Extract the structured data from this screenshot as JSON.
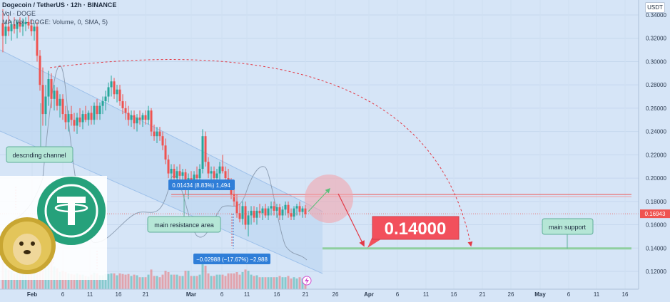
{
  "header": {
    "symbol_line": "Dogecoin / TetherUS · 12h · BINANCE",
    "vol_line": "Vol · DOGE",
    "ma_line": "MA (Vol · DOGE: Volume, 0, SMA, 5)"
  },
  "currency_label": "USDT",
  "colors": {
    "background": "#d6e5f7",
    "bull_candle": "#26a69a",
    "bear_candle": "#ef5350",
    "forecast_arrow": "#e23a46",
    "target_box": "#f2505c",
    "last_price_badge": "#ef5350",
    "measure_badge": "#2f7ed8",
    "label_box": "#b5e6d6",
    "support_line": "#8fcf9f",
    "resistance_line": "#ef5350"
  },
  "chart_data": {
    "type": "candlestick",
    "title": "Dogecoin / TetherUS · 12h · BINANCE",
    "y_unit": "USDT",
    "ylim": [
      0.11,
      0.35
    ],
    "y_ticks": [
      "0.34000",
      "0.32000",
      "0.30000",
      "0.28000",
      "0.26000",
      "0.24000",
      "0.22000",
      "0.20000",
      "0.18000",
      "0.16000",
      "0.14000",
      "0.12000"
    ],
    "y_tick_values": [
      0.34,
      0.32,
      0.3,
      0.28,
      0.26,
      0.24,
      0.22,
      0.2,
      0.18,
      0.16,
      0.14,
      0.12
    ],
    "x_ticks": [
      "Feb",
      "6",
      "11",
      "16",
      "21",
      "Mar",
      "6",
      "11",
      "16",
      "21",
      "26",
      "Apr",
      "6",
      "11",
      "16",
      "21",
      "26",
      "May",
      "6",
      "11",
      "16"
    ],
    "x_tick_bold": [
      "Feb",
      "Mar",
      "Apr",
      "May"
    ],
    "last_price": 0.16943,
    "last_price_label": "0.16943",
    "resistance_level": 0.186,
    "support_level": 0.14,
    "target_value": "0.14000",
    "candles": [
      {
        "x": 4,
        "o": 0.333,
        "h": 0.345,
        "l": 0.308,
        "c": 0.322
      },
      {
        "x": 8,
        "o": 0.322,
        "h": 0.335,
        "l": 0.315,
        "c": 0.33
      },
      {
        "x": 12,
        "o": 0.33,
        "h": 0.34,
        "l": 0.322,
        "c": 0.326
      },
      {
        "x": 16,
        "o": 0.326,
        "h": 0.335,
        "l": 0.318,
        "c": 0.332
      },
      {
        "x": 20,
        "o": 0.332,
        "h": 0.338,
        "l": 0.324,
        "c": 0.328
      },
      {
        "x": 24,
        "o": 0.328,
        "h": 0.336,
        "l": 0.32,
        "c": 0.334
      },
      {
        "x": 28,
        "o": 0.334,
        "h": 0.338,
        "l": 0.325,
        "c": 0.33
      },
      {
        "x": 32,
        "o": 0.33,
        "h": 0.337,
        "l": 0.322,
        "c": 0.332
      },
      {
        "x": 36,
        "o": 0.332,
        "h": 0.338,
        "l": 0.326,
        "c": 0.334
      },
      {
        "x": 40,
        "o": 0.334,
        "h": 0.34,
        "l": 0.328,
        "c": 0.331
      },
      {
        "x": 44,
        "o": 0.331,
        "h": 0.336,
        "l": 0.322,
        "c": 0.326
      },
      {
        "x": 48,
        "o": 0.326,
        "h": 0.333,
        "l": 0.318,
        "c": 0.33
      },
      {
        "x": 52,
        "o": 0.33,
        "h": 0.334,
        "l": 0.3,
        "c": 0.305
      },
      {
        "x": 56,
        "o": 0.305,
        "h": 0.31,
        "l": 0.275,
        "c": 0.28
      },
      {
        "x": 60,
        "o": 0.28,
        "h": 0.295,
        "l": 0.245,
        "c": 0.255
      },
      {
        "x": 64,
        "o": 0.255,
        "h": 0.28,
        "l": 0.245,
        "c": 0.27
      },
      {
        "x": 68,
        "o": 0.27,
        "h": 0.292,
        "l": 0.262,
        "c": 0.285
      },
      {
        "x": 72,
        "o": 0.285,
        "h": 0.29,
        "l": 0.26,
        "c": 0.268
      },
      {
        "x": 76,
        "o": 0.268,
        "h": 0.28,
        "l": 0.258,
        "c": 0.275
      },
      {
        "x": 80,
        "o": 0.275,
        "h": 0.278,
        "l": 0.258,
        "c": 0.262
      },
      {
        "x": 84,
        "o": 0.262,
        "h": 0.272,
        "l": 0.252,
        "c": 0.268
      },
      {
        "x": 88,
        "o": 0.268,
        "h": 0.272,
        "l": 0.25,
        "c": 0.255
      },
      {
        "x": 92,
        "o": 0.255,
        "h": 0.262,
        "l": 0.242,
        "c": 0.248
      },
      {
        "x": 96,
        "o": 0.248,
        "h": 0.258,
        "l": 0.24,
        "c": 0.255
      },
      {
        "x": 100,
        "o": 0.255,
        "h": 0.262,
        "l": 0.245,
        "c": 0.25
      },
      {
        "x": 104,
        "o": 0.25,
        "h": 0.256,
        "l": 0.24,
        "c": 0.245
      },
      {
        "x": 108,
        "o": 0.245,
        "h": 0.256,
        "l": 0.238,
        "c": 0.252
      },
      {
        "x": 112,
        "o": 0.252,
        "h": 0.26,
        "l": 0.244,
        "c": 0.248
      },
      {
        "x": 116,
        "o": 0.248,
        "h": 0.258,
        "l": 0.242,
        "c": 0.255
      },
      {
        "x": 120,
        "o": 0.255,
        "h": 0.262,
        "l": 0.248,
        "c": 0.25
      },
      {
        "x": 124,
        "o": 0.25,
        "h": 0.258,
        "l": 0.245,
        "c": 0.256
      },
      {
        "x": 128,
        "o": 0.256,
        "h": 0.262,
        "l": 0.246,
        "c": 0.25
      },
      {
        "x": 132,
        "o": 0.25,
        "h": 0.265,
        "l": 0.246,
        "c": 0.262
      },
      {
        "x": 136,
        "o": 0.262,
        "h": 0.268,
        "l": 0.25,
        "c": 0.255
      },
      {
        "x": 140,
        "o": 0.255,
        "h": 0.265,
        "l": 0.25,
        "c": 0.262
      },
      {
        "x": 144,
        "o": 0.262,
        "h": 0.27,
        "l": 0.255,
        "c": 0.266
      },
      {
        "x": 148,
        "o": 0.266,
        "h": 0.275,
        "l": 0.258,
        "c": 0.27
      },
      {
        "x": 152,
        "o": 0.27,
        "h": 0.282,
        "l": 0.265,
        "c": 0.278
      },
      {
        "x": 156,
        "o": 0.278,
        "h": 0.288,
        "l": 0.27,
        "c": 0.283
      },
      {
        "x": 160,
        "o": 0.283,
        "h": 0.286,
        "l": 0.268,
        "c": 0.272
      },
      {
        "x": 164,
        "o": 0.272,
        "h": 0.28,
        "l": 0.265,
        "c": 0.276
      },
      {
        "x": 168,
        "o": 0.276,
        "h": 0.28,
        "l": 0.262,
        "c": 0.266
      },
      {
        "x": 172,
        "o": 0.266,
        "h": 0.272,
        "l": 0.255,
        "c": 0.26
      },
      {
        "x": 176,
        "o": 0.26,
        "h": 0.266,
        "l": 0.25,
        "c": 0.256
      },
      {
        "x": 180,
        "o": 0.256,
        "h": 0.262,
        "l": 0.245,
        "c": 0.25
      },
      {
        "x": 184,
        "o": 0.25,
        "h": 0.258,
        "l": 0.244,
        "c": 0.254
      },
      {
        "x": 188,
        "o": 0.254,
        "h": 0.258,
        "l": 0.242,
        "c": 0.247
      },
      {
        "x": 192,
        "o": 0.247,
        "h": 0.255,
        "l": 0.24,
        "c": 0.252
      },
      {
        "x": 196,
        "o": 0.252,
        "h": 0.258,
        "l": 0.246,
        "c": 0.25
      },
      {
        "x": 200,
        "o": 0.25,
        "h": 0.256,
        "l": 0.244,
        "c": 0.254
      },
      {
        "x": 204,
        "o": 0.254,
        "h": 0.258,
        "l": 0.246,
        "c": 0.25
      },
      {
        "x": 208,
        "o": 0.25,
        "h": 0.262,
        "l": 0.246,
        "c": 0.258
      },
      {
        "x": 212,
        "o": 0.258,
        "h": 0.26,
        "l": 0.236,
        "c": 0.24
      },
      {
        "x": 216,
        "o": 0.24,
        "h": 0.246,
        "l": 0.232,
        "c": 0.236
      },
      {
        "x": 220,
        "o": 0.236,
        "h": 0.244,
        "l": 0.23,
        "c": 0.24
      },
      {
        "x": 224,
        "o": 0.24,
        "h": 0.244,
        "l": 0.232,
        "c": 0.236
      },
      {
        "x": 228,
        "o": 0.236,
        "h": 0.24,
        "l": 0.224,
        "c": 0.228
      },
      {
        "x": 232,
        "o": 0.228,
        "h": 0.234,
        "l": 0.212,
        "c": 0.216
      },
      {
        "x": 236,
        "o": 0.216,
        "h": 0.22,
        "l": 0.2,
        "c": 0.204
      },
      {
        "x": 240,
        "o": 0.204,
        "h": 0.212,
        "l": 0.196,
        "c": 0.208
      },
      {
        "x": 244,
        "o": 0.208,
        "h": 0.212,
        "l": 0.196,
        "c": 0.2
      },
      {
        "x": 248,
        "o": 0.2,
        "h": 0.21,
        "l": 0.194,
        "c": 0.206
      },
      {
        "x": 252,
        "o": 0.206,
        "h": 0.212,
        "l": 0.198,
        "c": 0.202
      },
      {
        "x": 256,
        "o": 0.202,
        "h": 0.208,
        "l": 0.194,
        "c": 0.205
      },
      {
        "x": 260,
        "o": 0.205,
        "h": 0.208,
        "l": 0.186,
        "c": 0.19
      },
      {
        "x": 264,
        "o": 0.19,
        "h": 0.204,
        "l": 0.182,
        "c": 0.2
      },
      {
        "x": 268,
        "o": 0.2,
        "h": 0.206,
        "l": 0.192,
        "c": 0.197
      },
      {
        "x": 272,
        "o": 0.197,
        "h": 0.206,
        "l": 0.192,
        "c": 0.203
      },
      {
        "x": 276,
        "o": 0.203,
        "h": 0.21,
        "l": 0.196,
        "c": 0.2
      },
      {
        "x": 280,
        "o": 0.2,
        "h": 0.212,
        "l": 0.196,
        "c": 0.208
      },
      {
        "x": 284,
        "o": 0.208,
        "h": 0.242,
        "l": 0.204,
        "c": 0.236
      },
      {
        "x": 288,
        "o": 0.236,
        "h": 0.24,
        "l": 0.21,
        "c": 0.214
      },
      {
        "x": 292,
        "o": 0.214,
        "h": 0.218,
        "l": 0.2,
        "c": 0.204
      },
      {
        "x": 296,
        "o": 0.204,
        "h": 0.21,
        "l": 0.196,
        "c": 0.206
      },
      {
        "x": 300,
        "o": 0.206,
        "h": 0.21,
        "l": 0.196,
        "c": 0.2
      },
      {
        "x": 304,
        "o": 0.2,
        "h": 0.208,
        "l": 0.192,
        "c": 0.204
      },
      {
        "x": 308,
        "o": 0.204,
        "h": 0.214,
        "l": 0.198,
        "c": 0.21
      },
      {
        "x": 312,
        "o": 0.21,
        "h": 0.22,
        "l": 0.204,
        "c": 0.206
      },
      {
        "x": 316,
        "o": 0.206,
        "h": 0.21,
        "l": 0.196,
        "c": 0.2
      },
      {
        "x": 320,
        "o": 0.2,
        "h": 0.208,
        "l": 0.19,
        "c": 0.196
      },
      {
        "x": 324,
        "o": 0.196,
        "h": 0.2,
        "l": 0.182,
        "c": 0.186
      },
      {
        "x": 328,
        "o": 0.186,
        "h": 0.194,
        "l": 0.176,
        "c": 0.18
      },
      {
        "x": 332,
        "o": 0.18,
        "h": 0.186,
        "l": 0.166,
        "c": 0.17
      },
      {
        "x": 336,
        "o": 0.17,
        "h": 0.178,
        "l": 0.162,
        "c": 0.165
      },
      {
        "x": 340,
        "o": 0.165,
        "h": 0.18,
        "l": 0.16,
        "c": 0.176
      },
      {
        "x": 344,
        "o": 0.176,
        "h": 0.18,
        "l": 0.156,
        "c": 0.16
      },
      {
        "x": 348,
        "o": 0.16,
        "h": 0.172,
        "l": 0.15,
        "c": 0.168
      },
      {
        "x": 352,
        "o": 0.168,
        "h": 0.176,
        "l": 0.16,
        "c": 0.172
      },
      {
        "x": 356,
        "o": 0.172,
        "h": 0.176,
        "l": 0.162,
        "c": 0.166
      },
      {
        "x": 360,
        "o": 0.166,
        "h": 0.175,
        "l": 0.16,
        "c": 0.172
      },
      {
        "x": 364,
        "o": 0.172,
        "h": 0.178,
        "l": 0.166,
        "c": 0.17
      },
      {
        "x": 368,
        "o": 0.17,
        "h": 0.176,
        "l": 0.164,
        "c": 0.174
      },
      {
        "x": 372,
        "o": 0.174,
        "h": 0.178,
        "l": 0.166,
        "c": 0.168
      },
      {
        "x": 376,
        "o": 0.168,
        "h": 0.176,
        "l": 0.164,
        "c": 0.174
      },
      {
        "x": 380,
        "o": 0.174,
        "h": 0.18,
        "l": 0.168,
        "c": 0.176
      },
      {
        "x": 384,
        "o": 0.176,
        "h": 0.18,
        "l": 0.168,
        "c": 0.172
      },
      {
        "x": 388,
        "o": 0.172,
        "h": 0.178,
        "l": 0.166,
        "c": 0.175
      },
      {
        "x": 392,
        "o": 0.175,
        "h": 0.178,
        "l": 0.164,
        "c": 0.168
      },
      {
        "x": 396,
        "o": 0.168,
        "h": 0.176,
        "l": 0.164,
        "c": 0.173
      },
      {
        "x": 400,
        "o": 0.173,
        "h": 0.18,
        "l": 0.168,
        "c": 0.177
      },
      {
        "x": 404,
        "o": 0.177,
        "h": 0.18,
        "l": 0.166,
        "c": 0.17
      },
      {
        "x": 408,
        "o": 0.17,
        "h": 0.174,
        "l": 0.164,
        "c": 0.167
      },
      {
        "x": 412,
        "o": 0.167,
        "h": 0.176,
        "l": 0.164,
        "c": 0.174
      },
      {
        "x": 416,
        "o": 0.174,
        "h": 0.178,
        "l": 0.168,
        "c": 0.176
      },
      {
        "x": 420,
        "o": 0.176,
        "h": 0.18,
        "l": 0.168,
        "c": 0.171
      },
      {
        "x": 424,
        "o": 0.171,
        "h": 0.176,
        "l": 0.166,
        "c": 0.174
      },
      {
        "x": 428,
        "o": 0.174,
        "h": 0.177,
        "l": 0.166,
        "c": 0.169
      }
    ],
    "annotations": {
      "descending_channel": "descnding channel",
      "main_resistance_area": "main resistance area",
      "main_support": "main support",
      "measure_top": "0.01434 (8.83%) 1,494",
      "measure_bottom": "−0.02988 (−17.67%) −2,988"
    }
  }
}
